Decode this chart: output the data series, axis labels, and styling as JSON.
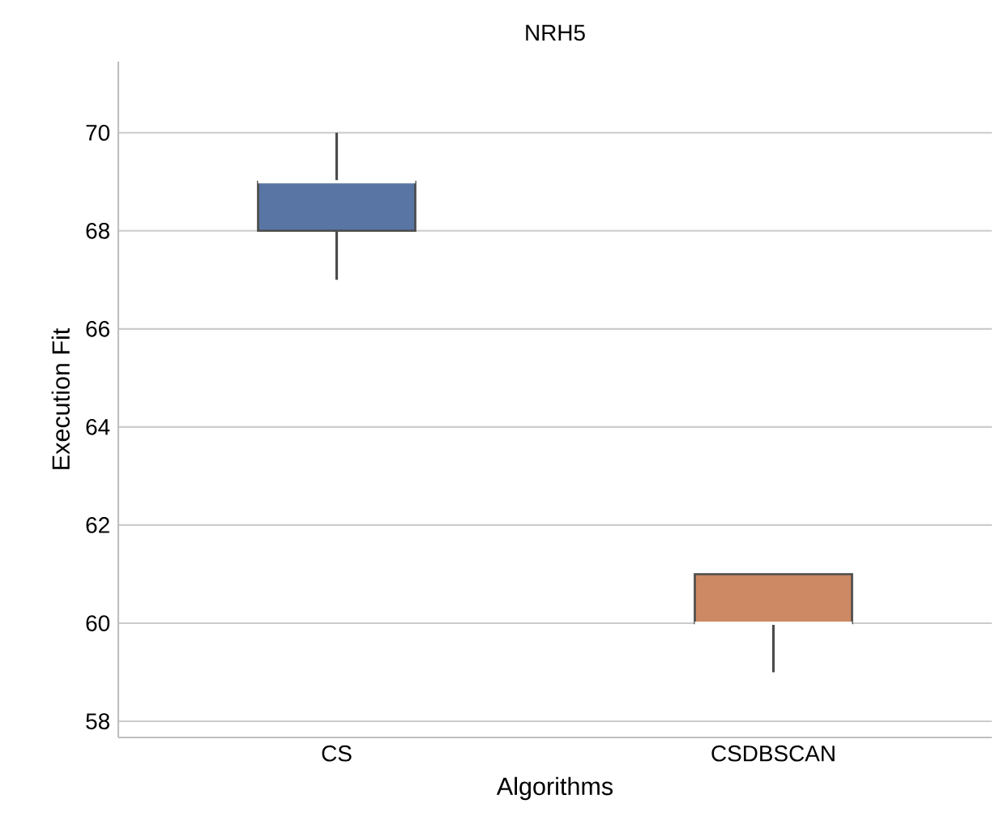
{
  "chart_data": {
    "type": "box",
    "title": "NRH5",
    "xlabel": "Algorithms",
    "ylabel": "Execution Fit",
    "categories": [
      "CS",
      "CSDBSCAN"
    ],
    "boxes": [
      {
        "low": 67,
        "q1": 68,
        "median": 69,
        "q3": 69,
        "high": 70
      },
      {
        "low": 59,
        "q1": 60,
        "median": 60,
        "q3": 61,
        "high": 61
      }
    ],
    "colors": [
      "#5875a4",
      "#cc8963"
    ],
    "ylim": [
      57.67,
      71.45
    ],
    "yticks": [
      58,
      60,
      62,
      64,
      66,
      68,
      70
    ],
    "grid": "y"
  }
}
